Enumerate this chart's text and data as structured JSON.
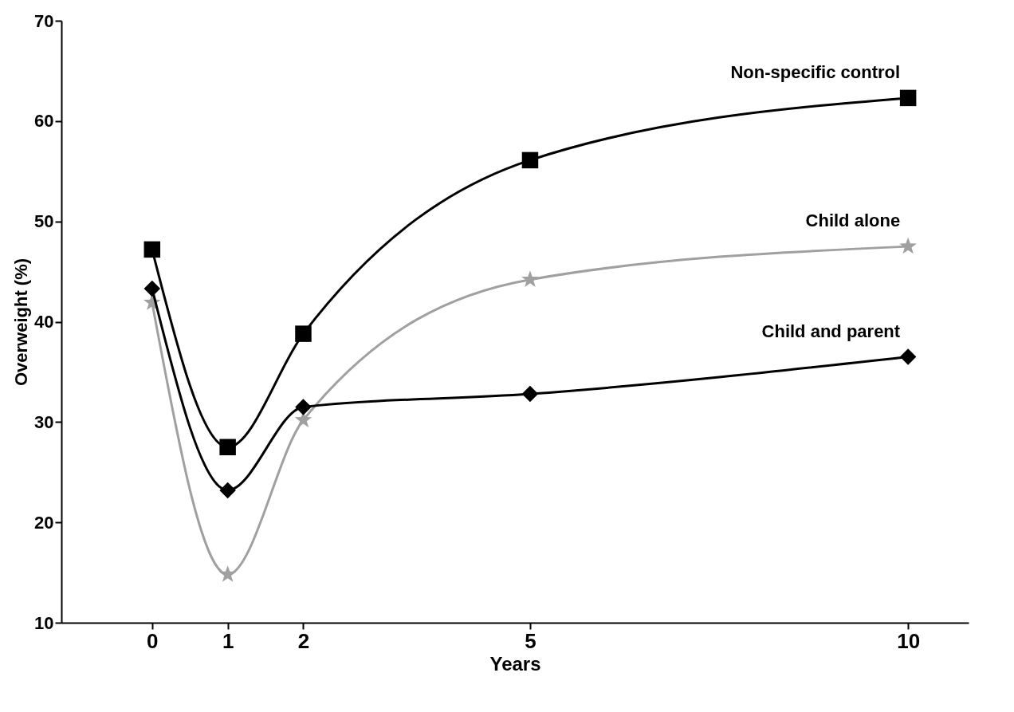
{
  "chart_data": {
    "type": "line",
    "xlabel": "Years",
    "ylabel": "Overweight (%)",
    "x": [
      0,
      1,
      2,
      5,
      10
    ],
    "xlim": [
      -1.2,
      10.8
    ],
    "xticks": [
      0,
      1,
      2,
      5,
      10
    ],
    "ylim": [
      10,
      70
    ],
    "yticks": [
      10,
      20,
      30,
      40,
      50,
      60,
      70
    ],
    "grid": false,
    "legend": false,
    "line_style": "solid",
    "series": [
      {
        "name": "Non-specific control",
        "color": "#000000",
        "marker": "square",
        "values": [
          47.2,
          27.5,
          38.8,
          56.1,
          62.3
        ]
      },
      {
        "name": "Child alone",
        "color": "#a0a0a0",
        "marker": "star",
        "values": [
          41.9,
          14.8,
          30.2,
          44.2,
          47.5
        ]
      },
      {
        "name": "Child and parent",
        "color": "#000000",
        "marker": "diamond",
        "values": [
          43.3,
          23.2,
          31.5,
          32.8,
          36.5
        ]
      }
    ]
  }
}
